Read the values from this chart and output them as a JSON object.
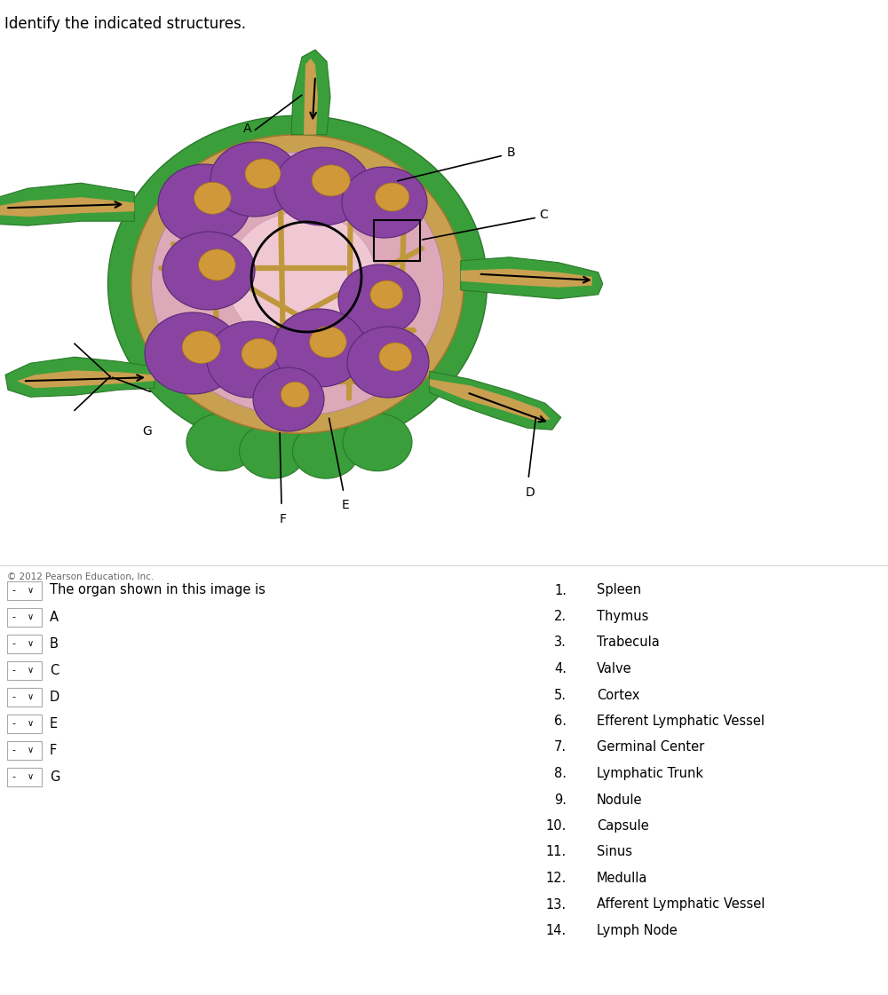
{
  "title": "Identify the indicated structures.",
  "copyright": "© 2012 Pearson Education, Inc.",
  "numbered_list_plain": [
    [
      "1.",
      "Spleen"
    ],
    [
      "2.",
      "Thymus"
    ],
    [
      "3.",
      "Trabecula"
    ],
    [
      "4.",
      "Valve"
    ],
    [
      "5.",
      "Cortex"
    ],
    [
      "6.",
      "Efferent Lymphatic Vessel"
    ],
    [
      "7.",
      "Germinal Center"
    ],
    [
      "8.",
      "Lymphatic Trunk"
    ],
    [
      "9.",
      "Nodule"
    ],
    [
      "10.",
      "Capsule"
    ],
    [
      "11.",
      "Sinus"
    ],
    [
      "12.",
      "Medulla"
    ],
    [
      "13.",
      "Afferent Lymphatic Vessel"
    ],
    [
      "14.",
      "Lymph Node"
    ]
  ],
  "labels": [
    "A",
    "B",
    "C",
    "D",
    "E",
    "F",
    "G"
  ],
  "bg_color": "#ffffff",
  "text_color": "#000000",
  "copyright_color": "#666666",
  "divider_color": "#cccccc",
  "green_dark": "#3a9e3a",
  "green_mid": "#45aa45",
  "capsule_tan": "#c8a050",
  "capsule_tan2": "#d4aa60",
  "cortex_pink": "#e8b8c4",
  "nodule_purple": "#8844a0",
  "nodule_purple2": "#9955b0",
  "gc_tan": "#c89030",
  "medulla_pink": "#f0c8d4",
  "trabecula_tan": "#c0983c"
}
